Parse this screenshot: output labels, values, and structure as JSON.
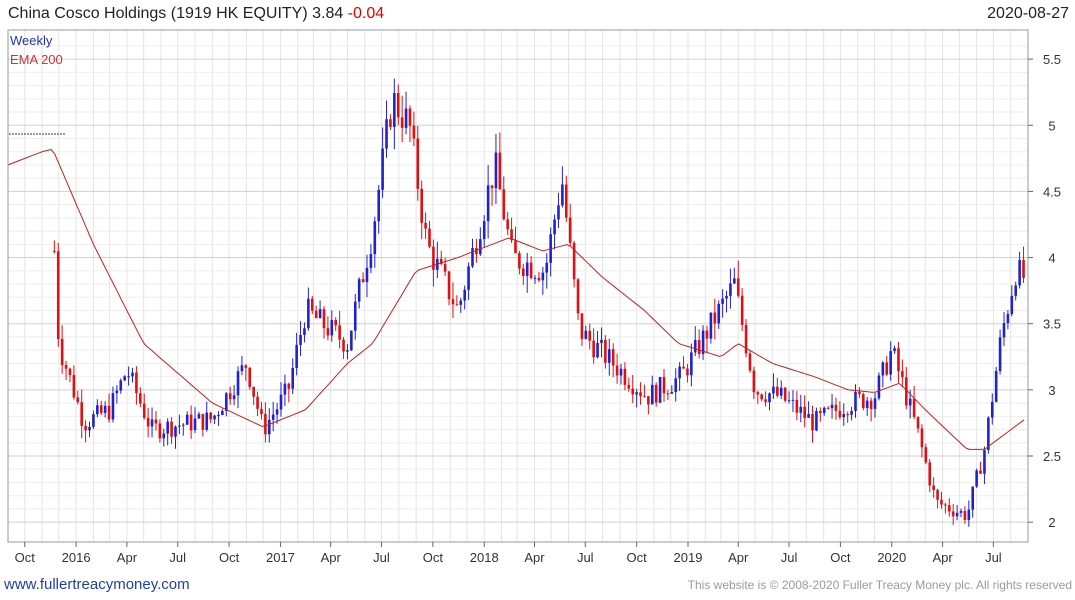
{
  "header": {
    "title": "China Cosco Holdings (1919 HK EQUITY) 3.84",
    "change": "-0.04",
    "date": "2020-08-27"
  },
  "footer": {
    "site": "www.fullertreacymoney.com",
    "copyright": "This website is © 2008-2020 Fuller Treacy Money plc. All rights reserved"
  },
  "colors": {
    "up": "#2222cc",
    "down": "#dd1111",
    "ema": "#bb2222",
    "grid": "#e4e4e4"
  },
  "chart_data": {
    "type": "candlestick",
    "legend": [
      "Weekly",
      "EMA 200"
    ],
    "x_ticks": [
      "Oct",
      "2016",
      "Apr",
      "Jul",
      "Oct",
      "2017",
      "Apr",
      "Jul",
      "Oct",
      "2018",
      "Apr",
      "Jul",
      "Oct",
      "2019",
      "Apr",
      "Jul",
      "Oct",
      "2020",
      "Apr",
      "Jul"
    ],
    "y_ticks": [
      2,
      2.5,
      3,
      3.5,
      4,
      4.5,
      5,
      5.5
    ],
    "ylim": [
      1.85,
      5.72
    ],
    "x_range": [
      "2015-09",
      "2020-08"
    ],
    "price_keypoints": [
      [
        "2015-11-23",
        4.05
      ],
      [
        "2015-12-01",
        3.35
      ],
      [
        "2016-01-15",
        2.75
      ],
      [
        "2016-03-01",
        2.85
      ],
      [
        "2016-04-01",
        3.15
      ],
      [
        "2016-05-15",
        2.7
      ],
      [
        "2016-09-01",
        2.78
      ],
      [
        "2016-11-01",
        3.2
      ],
      [
        "2016-12-01",
        2.7
      ],
      [
        "2017-01-15",
        3.0
      ],
      [
        "2017-02-15",
        3.6
      ],
      [
        "2017-05-01",
        3.35
      ],
      [
        "2017-06-15",
        4.2
      ],
      [
        "2017-07-20",
        5.2
      ],
      [
        "2017-08-20",
        5.0
      ],
      [
        "2017-09-20",
        4.1
      ],
      [
        "2017-11-15",
        3.6
      ],
      [
        "2018-01-20",
        4.7
      ],
      [
        "2018-02-20",
        4.0
      ],
      [
        "2018-04-20",
        3.9
      ],
      [
        "2018-05-20",
        4.6
      ],
      [
        "2018-06-20",
        3.45
      ],
      [
        "2018-08-20",
        3.2
      ],
      [
        "2018-10-20",
        2.95
      ],
      [
        "2018-12-20",
        3.1
      ],
      [
        "2019-03-25",
        3.8
      ],
      [
        "2019-05-01",
        3.0
      ],
      [
        "2019-06-15",
        2.95
      ],
      [
        "2019-08-15",
        2.75
      ],
      [
        "2019-10-15",
        2.9
      ],
      [
        "2019-12-01",
        2.95
      ],
      [
        "2020-01-01",
        3.3
      ],
      [
        "2020-02-15",
        2.7
      ],
      [
        "2020-03-20",
        2.15
      ],
      [
        "2020-05-15",
        2.05
      ],
      [
        "2020-06-15",
        2.55
      ],
      [
        "2020-07-15",
        3.4
      ],
      [
        "2020-08-10",
        3.9
      ],
      [
        "2020-08-27",
        3.84
      ]
    ],
    "ema_keypoints": [
      [
        "2015-09-01",
        4.7
      ],
      [
        "2015-11-01",
        4.8
      ],
      [
        "2015-11-20",
        4.82
      ],
      [
        "2016-02-01",
        4.1
      ],
      [
        "2016-05-01",
        3.35
      ],
      [
        "2016-09-01",
        2.9
      ],
      [
        "2016-12-01",
        2.72
      ],
      [
        "2017-02-15",
        2.85
      ],
      [
        "2017-05-01",
        3.2
      ],
      [
        "2017-06-15",
        3.35
      ],
      [
        "2017-09-01",
        3.9
      ],
      [
        "2017-11-15",
        4.0
      ],
      [
        "2018-02-15",
        4.15
      ],
      [
        "2018-04-15",
        4.05
      ],
      [
        "2018-06-01",
        4.1
      ],
      [
        "2018-08-01",
        3.85
      ],
      [
        "2018-10-15",
        3.6
      ],
      [
        "2018-12-15",
        3.35
      ],
      [
        "2019-03-01",
        3.25
      ],
      [
        "2019-04-01",
        3.35
      ],
      [
        "2019-06-01",
        3.2
      ],
      [
        "2019-08-15",
        3.1
      ],
      [
        "2019-10-15",
        3.0
      ],
      [
        "2019-12-01",
        2.98
      ],
      [
        "2020-01-15",
        3.05
      ],
      [
        "2020-03-01",
        2.85
      ],
      [
        "2020-05-15",
        2.55
      ],
      [
        "2020-06-15",
        2.55
      ],
      [
        "2020-08-27",
        2.78
      ]
    ]
  }
}
